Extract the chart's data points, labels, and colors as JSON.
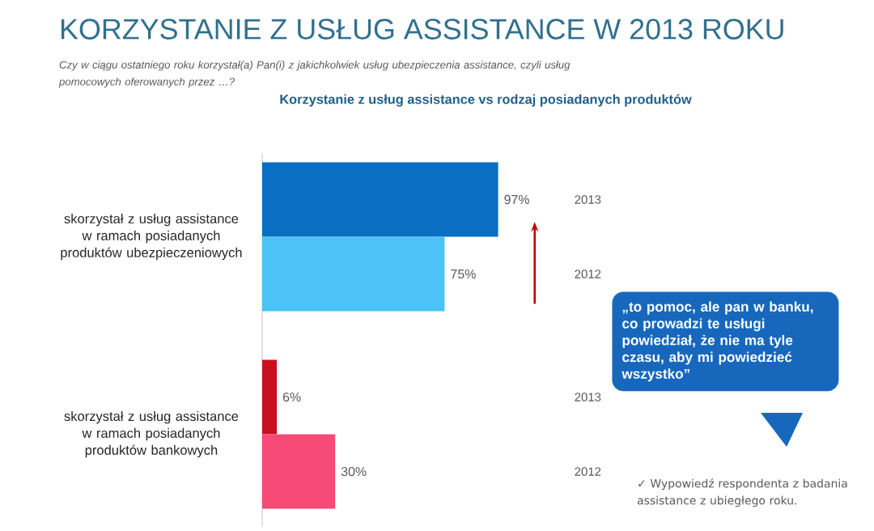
{
  "chart_data": {
    "type": "bar",
    "orientation": "horizontal",
    "title": "KORZYSTANIE Z USŁUG ASSISTANCE W 2013 ROKU",
    "subtitle": "Czy w ciągu ostatniego roku korzystał(a) Pan(i)  z  jakichkolwiek usług ubezpieczenia assistance, czyli usług pomocowych oferowanych przez …?",
    "categories": [
      "skorzystał z usług assistance w ramach posiadanych produktów ubezpieczeniowych",
      "skorzystał z usług assistance w ramach posiadanych produktów bankowych"
    ],
    "series": [
      {
        "name": "2013",
        "colors": [
          "#0a6fc2",
          "#c8101e"
        ],
        "values": [
          97,
          6
        ],
        "value_labels": [
          "97%",
          "6%"
        ]
      },
      {
        "name": "2012",
        "colors": [
          "#4cc3f5",
          "#f74a76"
        ],
        "values": [
          75,
          30
        ],
        "value_labels": [
          "75%",
          "30%"
        ]
      }
    ],
    "annotations": [
      "Korzystanie z usług assistance vs rodzaj posiadanych produktów",
      "„to pomoc, ale pan w banku, co prowadzi te usługi powiedział, że nie ma tyle czasu, aby mi powiedzieć wszystko”",
      "✓ Wypowiedź respondenta z badania assistance  z ubiegłego roku."
    ]
  }
}
